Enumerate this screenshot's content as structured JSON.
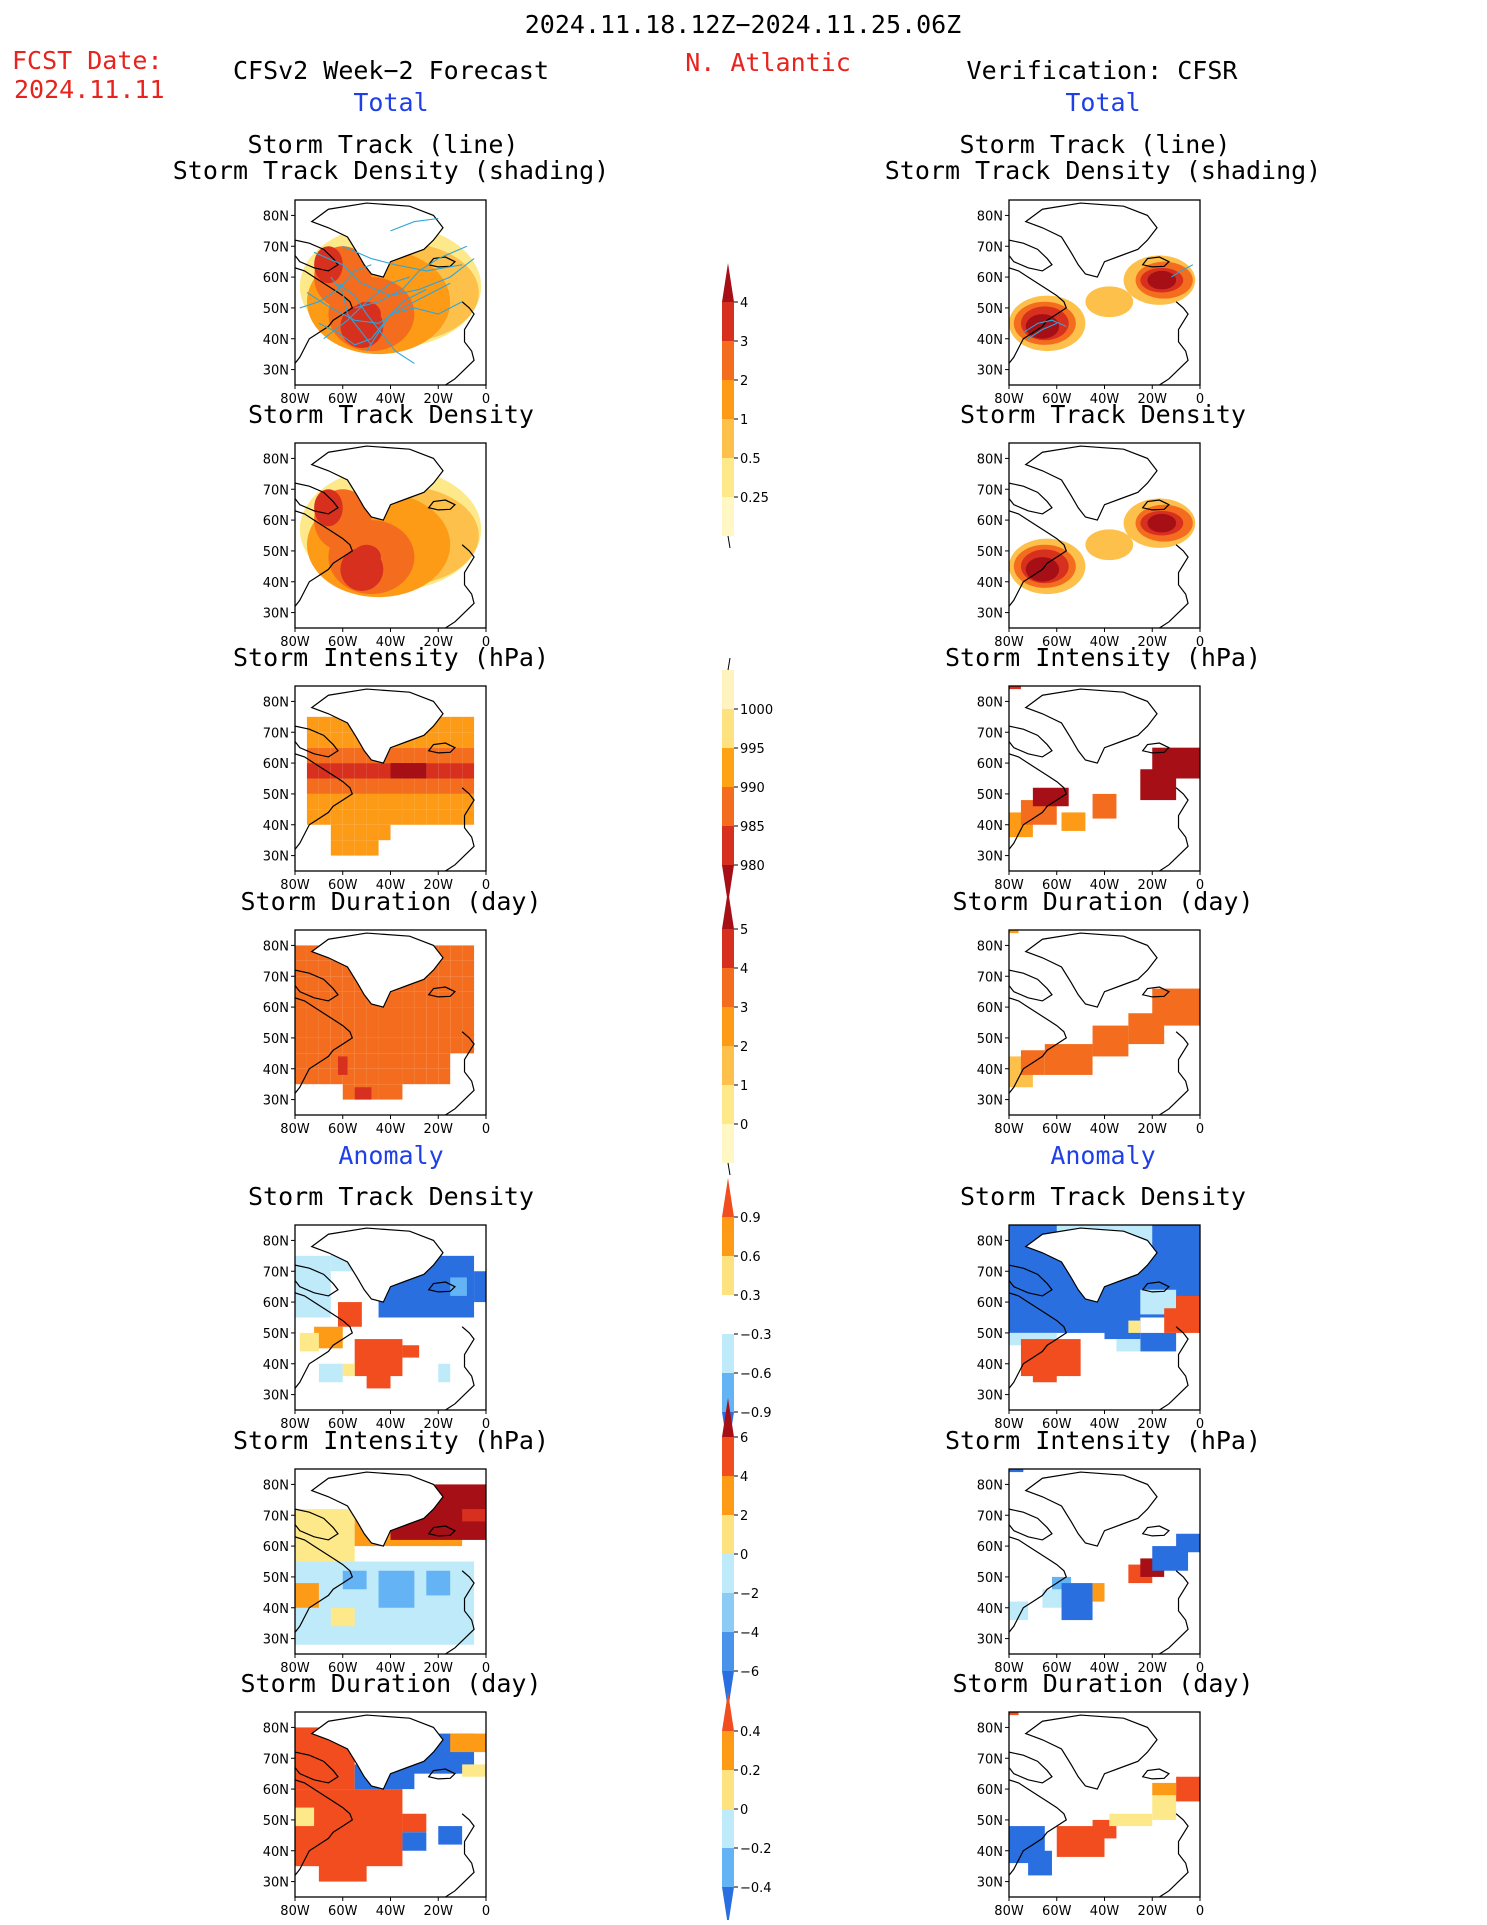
{
  "header": {
    "period": "2024.11.18.12Z−2024.11.25.06Z",
    "fcst_label": "FCST Date:",
    "fcst_date": "2024.11.11",
    "model": "CFSv2 Week−2 Forecast",
    "region": "N. Atlantic",
    "verification": "Verification: CFSR"
  },
  "sections": {
    "total": "Total",
    "anomaly": "Anomaly"
  },
  "panel_titles": {
    "track_line": "Storm Track (line)",
    "track_shading": "Storm Track Density (shading)",
    "density": "Storm Track Density",
    "intensity": "Storm Intensity (hPa)",
    "duration": "Storm Duration (day)"
  },
  "axes": {
    "lat_ticks": [
      "80N",
      "70N",
      "60N",
      "50N",
      "40N",
      "30N"
    ],
    "lon_ticks": [
      "80W",
      "60W",
      "40W",
      "20W",
      "0"
    ]
  },
  "colorbars": {
    "density_total": {
      "labels": [
        "4",
        "3",
        "2",
        "1",
        "0.5",
        "0.25"
      ],
      "colors": [
        "#a50f15",
        "#d7301f",
        "#f46d1e",
        "#fd9a16",
        "#fdc04a",
        "#fee98a",
        "#fff8c4"
      ]
    },
    "intensity_total": {
      "labels": [
        "1000",
        "995",
        "990",
        "985",
        "980"
      ],
      "colors": [
        "#fff4bf",
        "#fde27f",
        "#fda314",
        "#f46d1e",
        "#d7301f",
        "#a50f15"
      ]
    },
    "duration_total": {
      "labels": [
        "5",
        "4",
        "3",
        "2",
        "1",
        "0"
      ],
      "colors": [
        "#a50f15",
        "#d7301f",
        "#f46d1e",
        "#fd9a16",
        "#fdc04a",
        "#fee98a",
        "#fff8c4"
      ]
    },
    "density_anom": {
      "labels": [
        "0.9",
        "0.6",
        "0.3",
        "−0.3",
        "−0.6",
        "−0.9"
      ],
      "colors": [
        "#f24d1e",
        "#fd9a16",
        "#fde27f",
        "#ffffff",
        "#bfeaf9",
        "#64b3f4",
        "#2a6fe0"
      ]
    },
    "intensity_anom": {
      "labels": [
        "6",
        "4",
        "2",
        "0",
        "−2",
        "−4",
        "−6"
      ],
      "colors": [
        "#a50f15",
        "#f24d1e",
        "#fd9a16",
        "#fde27f",
        "#bfeaf9",
        "#8ccbf5",
        "#4a93ea",
        "#2a6fe0"
      ]
    },
    "duration_anom": {
      "labels": [
        "0.4",
        "0.2",
        "0",
        "−0.2",
        "−0.4"
      ],
      "colors": [
        "#f24d1e",
        "#fd9a16",
        "#fde27f",
        "#bfeaf9",
        "#64b3f4",
        "#2a6fe0"
      ]
    }
  }
}
